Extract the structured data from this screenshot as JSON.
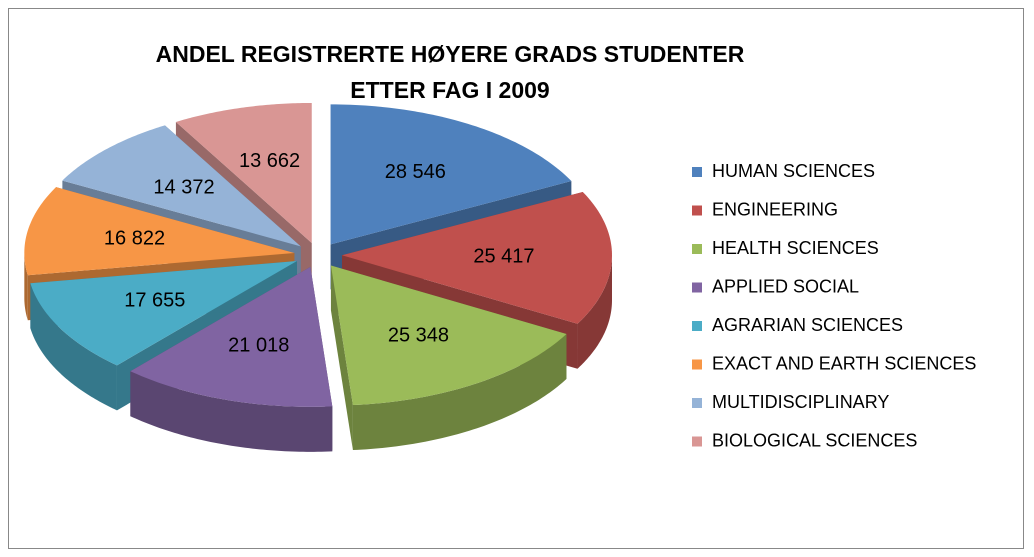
{
  "chart_data": {
    "type": "pie",
    "title": "ANDEL REGISTRERTE HØYERE GRADS STUDENTER ETTER FAG I 2009",
    "series": [
      {
        "name": "HUMAN SCIENCES",
        "color": "#4f81bd"
      },
      {
        "name": "ENGINEERING",
        "color": "#c0504d"
      },
      {
        "name": "HEALTH SCIENCES",
        "color": "#9bbb59"
      },
      {
        "name": "APPLIED SOCIAL",
        "color": "#8064a2"
      },
      {
        "name": "AGRARIAN SCIENCES",
        "color": "#4bacc6"
      },
      {
        "name": "EXACT AND EARTH SCIENCES",
        "color": "#f79646"
      },
      {
        "name": "MULTIDISCIPLINARY",
        "color": "#95b3d7"
      },
      {
        "name": "BIOLOGICAL SCIENCES",
        "color": "#d99694"
      }
    ],
    "values": [
      28546,
      25417,
      25348,
      21018,
      17655,
      16822,
      14372,
      13662
    ],
    "value_labels": [
      "28 546",
      "25 417",
      "25 348",
      "21 018",
      "17 655",
      "16 822",
      "14 372",
      "13 662"
    ],
    "legend": "right"
  }
}
